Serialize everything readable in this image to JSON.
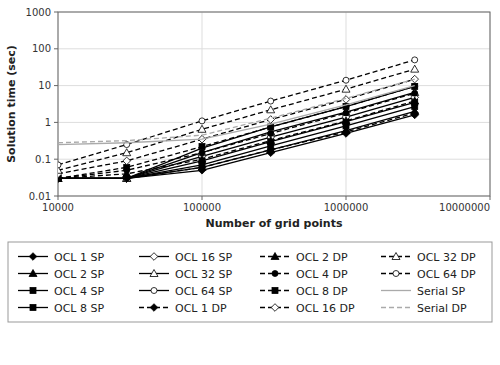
{
  "chart_data": {
    "type": "line",
    "x_label": "Number of grid points",
    "y_label": "Solution time (sec)",
    "x": [
      10000,
      30000,
      100000,
      300000,
      1000000,
      3000000
    ],
    "series": [
      {
        "name": "OCL 1 SP",
        "color": "#000000",
        "marker": "diamond",
        "line_style": "solid",
        "values": [
          0.03,
          0.03,
          0.05,
          0.15,
          0.5,
          1.6
        ]
      },
      {
        "name": "OCL 2 SP",
        "color": "#000000",
        "marker": "triangle",
        "line_style": "solid",
        "values": [
          0.03,
          0.03,
          0.06,
          0.18,
          0.6,
          2.0
        ]
      },
      {
        "name": "OCL 4 SP",
        "color": "#000000",
        "marker": "square",
        "line_style": "solid",
        "values": [
          0.03,
          0.03,
          0.07,
          0.23,
          0.8,
          2.7
        ]
      },
      {
        "name": "OCL 8 SP",
        "color": "#000000",
        "marker": "square",
        "line_style": "solid",
        "values": [
          0.03,
          0.03,
          0.09,
          0.3,
          1.05,
          3.5
        ]
      },
      {
        "name": "OCL 16 SP",
        "color": "#000000",
        "marker": "diamond-open",
        "line_style": "solid",
        "values": [
          0.03,
          0.03,
          0.12,
          0.4,
          1.4,
          4.8
        ]
      },
      {
        "name": "OCL 32 SP",
        "color": "#000000",
        "marker": "triangle-open",
        "line_style": "solid",
        "values": [
          0.03,
          0.03,
          0.15,
          0.55,
          1.9,
          6.5
        ]
      },
      {
        "name": "OCL 64 SP",
        "color": "#000000",
        "marker": "circle-open",
        "line_style": "solid",
        "values": [
          0.03,
          0.03,
          0.2,
          0.75,
          2.7,
          9.5
        ]
      },
      {
        "name": "OCL 1 DP",
        "color": "#000000",
        "marker": "diamond",
        "line_style": "dashed",
        "values": [
          0.03,
          0.03,
          0.06,
          0.18,
          0.55,
          1.8
        ]
      },
      {
        "name": "OCL 2 DP",
        "color": "#000000",
        "marker": "triangle",
        "line_style": "dashed",
        "values": [
          0.03,
          0.04,
          0.1,
          0.32,
          1.1,
          3.8
        ]
      },
      {
        "name": "OCL 4 DP",
        "color": "#000000",
        "marker": "circle",
        "line_style": "dashed",
        "values": [
          0.03,
          0.05,
          0.15,
          0.5,
          1.8,
          6.2
        ]
      },
      {
        "name": "OCL 8 DP",
        "color": "#000000",
        "marker": "square",
        "line_style": "dashed",
        "values": [
          0.03,
          0.06,
          0.22,
          0.75,
          2.7,
          9.5
        ]
      },
      {
        "name": "OCL 16 DP",
        "color": "#000000",
        "marker": "diamond-open",
        "line_style": "dashed",
        "values": [
          0.04,
          0.09,
          0.35,
          1.2,
          4.2,
          15.0
        ]
      },
      {
        "name": "OCL 32 DP",
        "color": "#000000",
        "marker": "triangle-open",
        "line_style": "dashed",
        "values": [
          0.05,
          0.15,
          0.65,
          2.2,
          8.0,
          28.0
        ]
      },
      {
        "name": "OCL 64 DP",
        "color": "#000000",
        "marker": "circle-open",
        "line_style": "dashed",
        "values": [
          0.07,
          0.25,
          1.1,
          3.8,
          14.0,
          50.0
        ]
      },
      {
        "name": "Serial SP",
        "color": "#aaaaaa",
        "marker": "none",
        "line_style": "solid",
        "values": [
          0.25,
          0.28,
          0.35,
          0.9,
          3.0,
          10.0
        ]
      },
      {
        "name": "Serial DP",
        "color": "#aaaaaa",
        "marker": "none",
        "line_style": "dashed",
        "values": [
          0.28,
          0.32,
          0.45,
          1.3,
          4.5,
          15.0
        ]
      }
    ],
    "xlim": [
      10000,
      10000000
    ],
    "ylim": [
      0.01,
      1000
    ],
    "xticks": [
      10000,
      100000,
      1000000,
      10000000
    ],
    "yticks": [
      0.01,
      0.1,
      1,
      10,
      100,
      1000
    ],
    "log": true,
    "grid": true,
    "legend": "bottom"
  }
}
